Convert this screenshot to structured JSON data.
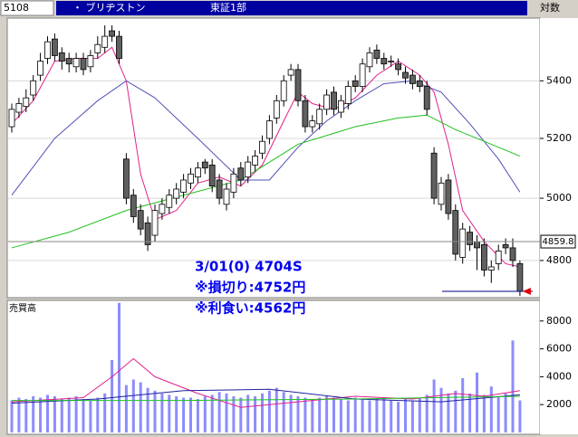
{
  "header": {
    "code": "5108",
    "name": "・ ブリヂストン",
    "market": "東証1部",
    "scale": "対数"
  },
  "chart_data": [
    {
      "type": "candlestick",
      "log": true,
      "grid": true,
      "ylim": [
        4690,
        5620
      ],
      "yticks": [
        4800,
        5000,
        5200,
        5400
      ],
      "current_price": 4859.8,
      "annotations": [
        "3/01(0) 4704S",
        "※損切り:4752円",
        "※利食い:4562円"
      ],
      "open": [
        5240,
        5290,
        5310,
        5350,
        5420,
        5480,
        5550,
        5500,
        5480,
        5450,
        5480,
        5450,
        5500,
        5520,
        5580,
        5560,
        5130,
        5010,
        4960,
        4920,
        4880,
        4950,
        4970,
        5000,
        5020,
        5050,
        5070,
        5120,
        5110,
        5060,
        4980,
        5020,
        5100,
        5070,
        5110,
        5150,
        5200,
        5270,
        5330,
        5420,
        5440,
        5330,
        5240,
        5250,
        5300,
        5360,
        5290,
        5320,
        5400,
        5380,
        5450,
        5510,
        5480,
        5470,
        5460,
        5430,
        5420,
        5400,
        5380,
        5150,
        4980,
        5060,
        4960,
        4810,
        4890,
        4860,
        4850,
        4770,
        4790,
        4850,
        4840,
        4790
      ],
      "high": [
        5320,
        5340,
        5370,
        5420,
        5500,
        5560,
        5570,
        5520,
        5500,
        5500,
        5500,
        5510,
        5560,
        5600,
        5600,
        5580,
        5150,
        5030,
        4980,
        4940,
        4980,
        5000,
        5030,
        5050,
        5080,
        5100,
        5120,
        5130,
        5130,
        5080,
        5050,
        5100,
        5120,
        5140,
        5160,
        5210,
        5280,
        5350,
        5420,
        5460,
        5460,
        5350,
        5280,
        5320,
        5370,
        5380,
        5350,
        5400,
        5420,
        5480,
        5520,
        5530,
        5500,
        5490,
        5480,
        5450,
        5440,
        5420,
        5400,
        5170,
        5070,
        5080,
        4980,
        4920,
        4910,
        4880,
        4870,
        4800,
        4850,
        4870,
        4870,
        4800
      ],
      "low": [
        5220,
        5270,
        5290,
        5330,
        5400,
        5460,
        5470,
        5440,
        5430,
        5430,
        5420,
        5430,
        5480,
        5500,
        5540,
        5460,
        4980,
        4920,
        4880,
        4830,
        4860,
        4930,
        4950,
        4980,
        5000,
        5030,
        5050,
        5080,
        5020,
        4980,
        4960,
        5000,
        5040,
        5050,
        5090,
        5130,
        5180,
        5250,
        5310,
        5400,
        5310,
        5220,
        5220,
        5230,
        5280,
        5280,
        5270,
        5300,
        5360,
        5360,
        5430,
        5460,
        5440,
        5450,
        5420,
        5390,
        5370,
        5360,
        5280,
        4980,
        4960,
        4930,
        4800,
        4790,
        4830,
        4770,
        4750,
        4730,
        4770,
        4820,
        4780,
        4690
      ],
      "close": [
        5300,
        5320,
        5340,
        5400,
        5470,
        5540,
        5490,
        5470,
        5460,
        5480,
        5440,
        5490,
        5530,
        5560,
        5560,
        5480,
        5000,
        4940,
        4900,
        4850,
        4960,
        4980,
        5010,
        5030,
        5060,
        5080,
        5100,
        5100,
        5040,
        5000,
        5030,
        5080,
        5060,
        5120,
        5140,
        5190,
        5260,
        5330,
        5400,
        5440,
        5330,
        5240,
        5260,
        5300,
        5350,
        5300,
        5330,
        5380,
        5380,
        5460,
        5500,
        5480,
        5460,
        5470,
        5440,
        5410,
        5390,
        5380,
        5300,
        5000,
        5050,
        4950,
        4820,
        4900,
        4850,
        4840,
        4770,
        4780,
        4830,
        4840,
        4800,
        4704
      ],
      "lines": [
        {
          "color": "#e0208a",
          "x": [
            0,
            3,
            6,
            9,
            12,
            14,
            16,
            18,
            20,
            23,
            26,
            29,
            32,
            35,
            38,
            40,
            42,
            45,
            48,
            51,
            54,
            57,
            59,
            61,
            63,
            66,
            69,
            71
          ],
          "values": [
            5250,
            5330,
            5470,
            5480,
            5480,
            5520,
            5400,
            5080,
            4930,
            4960,
            5050,
            5070,
            5040,
            5110,
            5260,
            5360,
            5320,
            5300,
            5340,
            5420,
            5470,
            5420,
            5360,
            5180,
            4960,
            4860,
            4790,
            4780
          ]
        },
        {
          "color": "#5050b8",
          "x": [
            0,
            6,
            12,
            16,
            20,
            26,
            32,
            36,
            40,
            44,
            48,
            52,
            56,
            60,
            64,
            68,
            71
          ],
          "values": [
            5010,
            5200,
            5330,
            5400,
            5340,
            5200,
            5060,
            5060,
            5170,
            5260,
            5330,
            5390,
            5400,
            5360,
            5250,
            5130,
            5020
          ]
        },
        {
          "color": "#20c020",
          "x": [
            0,
            8,
            16,
            24,
            32,
            40,
            48,
            54,
            58,
            62,
            66,
            71
          ],
          "values": [
            4840,
            4890,
            4960,
            5010,
            5060,
            5180,
            5240,
            5270,
            5280,
            5230,
            5190,
            5140
          ]
        }
      ]
    },
    {
      "type": "bar",
      "title": "売買高",
      "color": "#8c8cff",
      "ylim": [
        0,
        9350
      ],
      "yticks": [
        2000,
        4000,
        6000,
        8000
      ],
      "values": [
        2300,
        2500,
        2400,
        2600,
        2500,
        2700,
        2600,
        2400,
        2500,
        2600,
        2400,
        2300,
        2500,
        2800,
        5200,
        9300,
        3400,
        3800,
        3600,
        3200,
        3000,
        2800,
        2700,
        2600,
        2500,
        2500,
        2400,
        2600,
        2700,
        2900,
        2800,
        2600,
        2500,
        2700,
        2600,
        2800,
        3000,
        3200,
        2900,
        2700,
        2600,
        2500,
        2400,
        2500,
        2600,
        2500,
        2400,
        2300,
        2500,
        2400,
        2300,
        2400,
        2500,
        2300,
        2200,
        2400,
        2300,
        2500,
        2700,
        3800,
        3200,
        2800,
        3000,
        3900,
        2800,
        4300,
        2700,
        3300,
        2600,
        2800,
        6600,
        2300
      ],
      "lines": [
        {
          "color": "#e0208a",
          "x": [
            0,
            10,
            14,
            17,
            20,
            26,
            32,
            40,
            48,
            56,
            62,
            66,
            71
          ],
          "values": [
            2200,
            2500,
            4000,
            5300,
            4000,
            2800,
            1800,
            2200,
            2600,
            2400,
            2800,
            2600,
            3000
          ]
        },
        {
          "color": "#2020a0",
          "x": [
            0,
            12,
            24,
            36,
            48,
            60,
            71
          ],
          "values": [
            2100,
            2400,
            3000,
            3100,
            2400,
            2200,
            2700
          ]
        },
        {
          "color": "#20c020",
          "x": [
            0,
            24,
            48,
            71
          ],
          "values": [
            2300,
            2300,
            2400,
            2600
          ]
        }
      ]
    }
  ]
}
